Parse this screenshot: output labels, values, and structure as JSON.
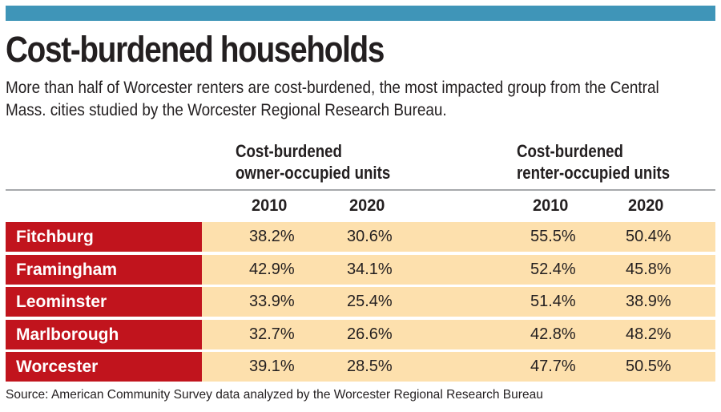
{
  "colors": {
    "accent_bar": "#3f95b8",
    "city_band": "#c1141d",
    "value_band": "#fde0ad",
    "rule": "#a7a9ac"
  },
  "header": {
    "title": "Cost-burdened households",
    "subtitle": "More than half of Worcester renters are cost-burdened, the most impacted group from the Central Mass. cities studied by the Worcester Regional Research Bureau."
  },
  "chart_data": {
    "type": "table",
    "title": "Cost-burdened households",
    "column_groups": [
      {
        "label_line1": "Cost-burdened",
        "label_line2": "owner-occupied units",
        "years": [
          "2010",
          "2020"
        ]
      },
      {
        "label_line1": "Cost-burdened",
        "label_line2": "renter-occupied units",
        "years": [
          "2010",
          "2020"
        ]
      }
    ],
    "rows": [
      {
        "city": "Fitchburg",
        "owner_2010": "38.2%",
        "owner_2020": "30.6%",
        "renter_2010": "55.5%",
        "renter_2020": "50.4%"
      },
      {
        "city": "Framingham",
        "owner_2010": "42.9%",
        "owner_2020": "34.1%",
        "renter_2010": "52.4%",
        "renter_2020": "45.8%"
      },
      {
        "city": "Leominster",
        "owner_2010": "33.9%",
        "owner_2020": "25.4%",
        "renter_2010": "51.4%",
        "renter_2020": "38.9%"
      },
      {
        "city": "Marlborough",
        "owner_2010": "32.7%",
        "owner_2020": "26.6%",
        "renter_2010": "42.8%",
        "renter_2020": "48.2%"
      },
      {
        "city": "Worcester",
        "owner_2010": "39.1%",
        "owner_2020": "28.5%",
        "renter_2010": "47.7%",
        "renter_2020": "50.5%"
      }
    ]
  },
  "footer": {
    "source": "Source: American Community Survey data analyzed by the Worcester Regional Research Bureau"
  }
}
